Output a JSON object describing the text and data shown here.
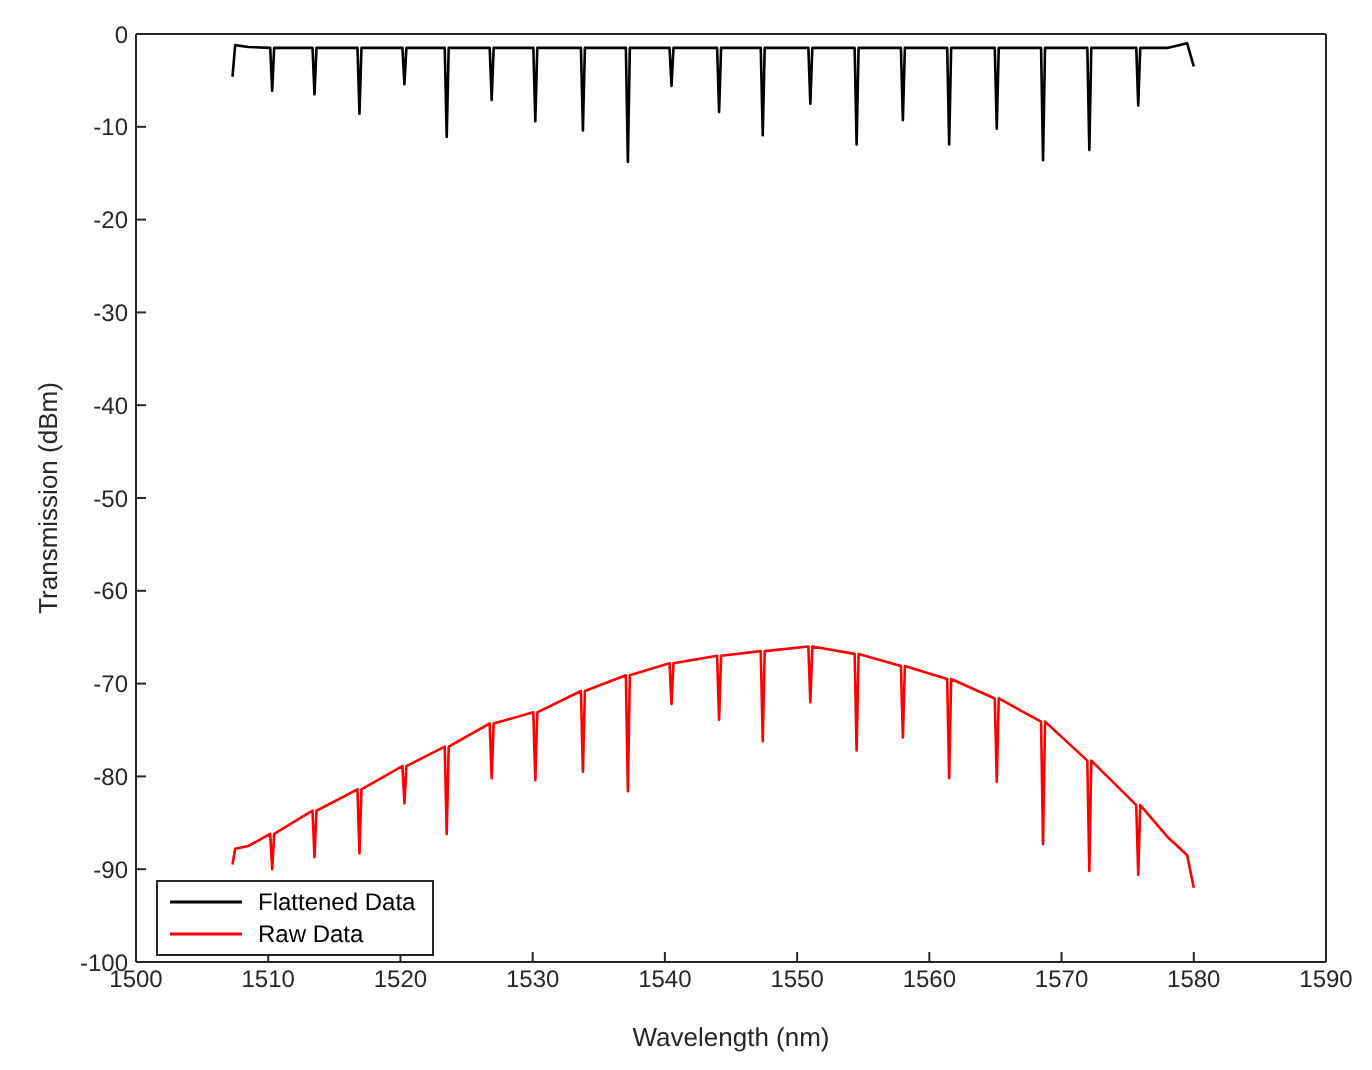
{
  "chart_data": {
    "type": "line",
    "xlabel": "Wavelength (nm)",
    "ylabel": "Transmission (dBm)",
    "x": [
      1507.3,
      1507.5,
      1508.5,
      1510.15,
      1510.3,
      1510.45,
      1513.35,
      1513.5,
      1513.65,
      1516.75,
      1516.9,
      1517.05,
      1520.15,
      1520.3,
      1520.45,
      1523.35,
      1523.5,
      1523.65,
      1526.75,
      1526.9,
      1527.05,
      1530.05,
      1530.2,
      1530.35,
      1533.65,
      1533.8,
      1533.95,
      1537.05,
      1537.2,
      1537.35,
      1540.35,
      1540.5,
      1540.65,
      1543.95,
      1544.1,
      1544.25,
      1547.25,
      1547.4,
      1547.55,
      1550.85,
      1551.0,
      1551.15,
      1554.35,
      1554.5,
      1554.65,
      1557.85,
      1558.0,
      1558.15,
      1561.35,
      1561.5,
      1561.65,
      1564.95,
      1565.1,
      1565.25,
      1568.45,
      1568.6,
      1568.75,
      1571.95,
      1572.1,
      1572.25,
      1575.65,
      1575.8,
      1575.95,
      1578,
      1579.5,
      1580
    ],
    "series": [
      {
        "name": "Flattened Data",
        "color": "#000000",
        "values": [
          -4.6,
          -1.2,
          -1.4,
          -1.5,
          -6.1,
          -1.5,
          -1.5,
          -6.5,
          -1.5,
          -1.5,
          -8.6,
          -1.5,
          -1.5,
          -5.4,
          -1.5,
          -1.5,
          -11.1,
          -1.5,
          -1.5,
          -7.1,
          -1.5,
          -1.5,
          -9.4,
          -1.5,
          -1.5,
          -10.4,
          -1.5,
          -1.5,
          -13.8,
          -1.5,
          -1.5,
          -5.6,
          -1.5,
          -1.5,
          -8.4,
          -1.5,
          -1.5,
          -10.9,
          -1.5,
          -1.5,
          -7.5,
          -1.5,
          -1.5,
          -11.9,
          -1.5,
          -1.5,
          -9.3,
          -1.5,
          -1.5,
          -11.9,
          -1.5,
          -1.5,
          -10.2,
          -1.5,
          -1.5,
          -13.6,
          -1.5,
          -1.5,
          -12.5,
          -1.5,
          -1.5,
          -7.7,
          -1.5,
          -1.5,
          -1.0,
          -3.5
        ]
      },
      {
        "name": "Raw Data",
        "color": "#ff0000",
        "values": [
          -89.5,
          -87.8,
          -87.5,
          -86.2,
          -90.0,
          -86.2,
          -83.7,
          -88.7,
          -83.7,
          -81.4,
          -88.3,
          -81.4,
          -78.9,
          -82.9,
          -78.9,
          -76.8,
          -86.2,
          -76.8,
          -74.3,
          -80.2,
          -74.3,
          -73.1,
          -80.4,
          -73.1,
          -70.8,
          -79.5,
          -70.8,
          -69.1,
          -81.6,
          -69.1,
          -67.8,
          -72.2,
          -67.8,
          -67.0,
          -73.9,
          -67.0,
          -66.5,
          -76.2,
          -66.5,
          -66.0,
          -72.0,
          -66.0,
          -66.8,
          -77.2,
          -66.8,
          -68.1,
          -75.8,
          -68.1,
          -69.5,
          -80.2,
          -69.5,
          -71.6,
          -80.6,
          -71.6,
          -74.1,
          -87.3,
          -74.1,
          -78.3,
          -90.2,
          -78.3,
          -83.1,
          -90.6,
          -83.1,
          -86.5,
          -88.5,
          -92.0
        ]
      }
    ],
    "xlim": [
      1500,
      1590
    ],
    "xticks": [
      1500,
      1510,
      1520,
      1530,
      1540,
      1550,
      1560,
      1570,
      1580,
      1590
    ],
    "ylim": [
      -100,
      0
    ],
    "yticks": [
      -100,
      -90,
      -80,
      -70,
      -60,
      -50,
      -40,
      -30,
      -20,
      -10,
      0
    ],
    "legend": "bottom left",
    "marker": "none",
    "line_style": "solid"
  }
}
